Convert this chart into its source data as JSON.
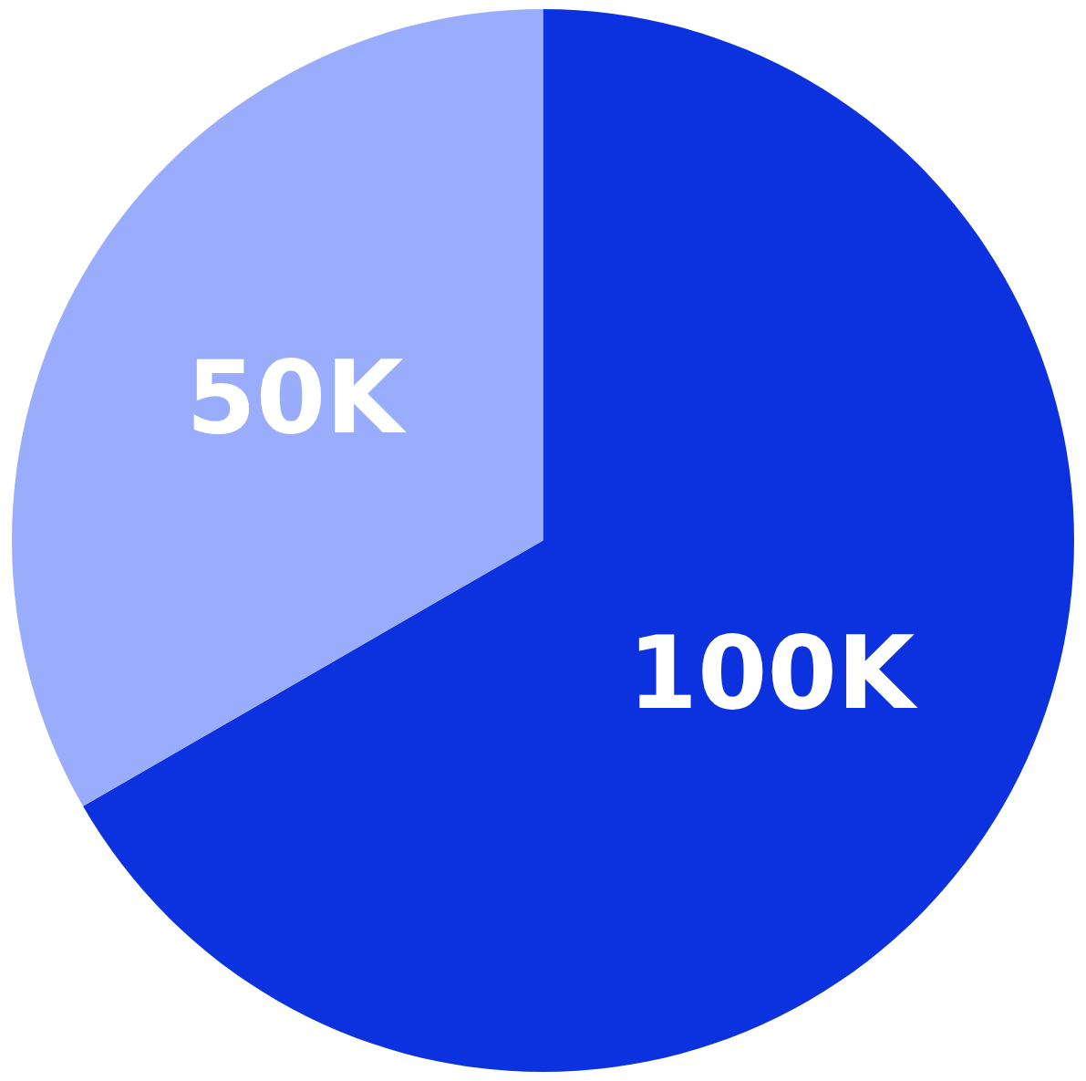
{
  "chart_data": {
    "type": "pie",
    "categories": [
      null,
      null
    ],
    "values": [
      100000,
      50000
    ],
    "value_labels": [
      "100K",
      "50K"
    ],
    "colors": [
      "#0c32e0",
      "#9aadfd"
    ],
    "legend": false
  }
}
